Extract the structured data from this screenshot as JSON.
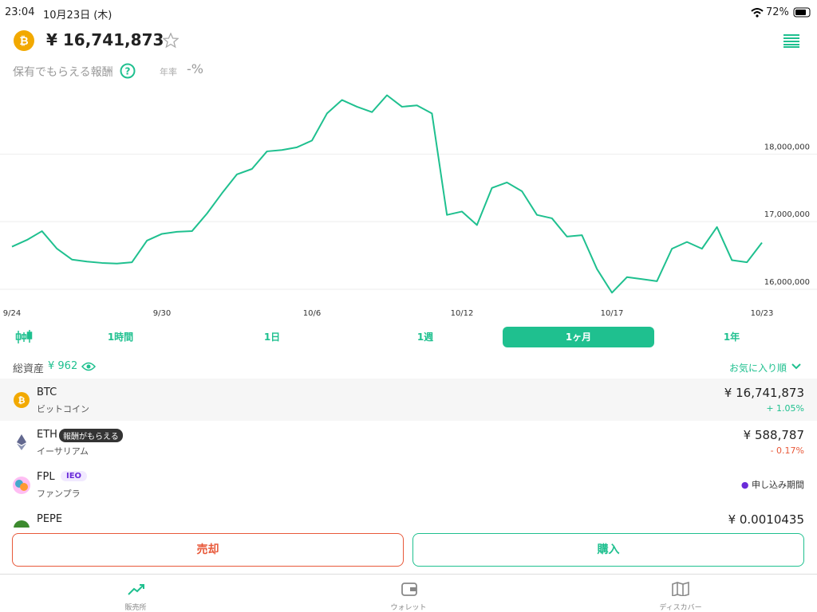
{
  "status_bar": {
    "time": "23:04",
    "date": "10月23日 (木)",
    "battery": "72%"
  },
  "header": {
    "price": "¥ 16,741,873",
    "reward": "保有でもらえる報酬",
    "rate_label": "年率",
    "rate": "-%"
  },
  "chart_data": {
    "type": "line",
    "color": "#1fc08f",
    "grid": true,
    "categories": [
      "9/24",
      null,
      null,
      null,
      null,
      null,
      null,
      null,
      null,
      null,
      "9/30",
      null,
      null,
      null,
      null,
      null,
      null,
      null,
      null,
      null,
      "10/6",
      null,
      null,
      null,
      null,
      null,
      null,
      null,
      null,
      null,
      "10/12",
      null,
      null,
      null,
      null,
      null,
      null,
      null,
      null,
      null,
      "10/17",
      null,
      null,
      null,
      null,
      null,
      null,
      null,
      null,
      null,
      "10/23"
    ],
    "values": [
      16630000,
      16730000,
      16860000,
      16600000,
      16440000,
      16410000,
      16390000,
      16380000,
      16400000,
      16720000,
      16820000,
      16850000,
      16860000,
      17120000,
      17420000,
      17700000,
      17780000,
      18040000,
      18060000,
      18100000,
      18200000,
      18600000,
      18800000,
      18700000,
      18620000,
      18870000,
      18700000,
      18720000,
      18600000,
      17100000,
      17150000,
      16950000,
      17500000,
      17580000,
      17450000,
      17100000,
      17050000,
      16780000,
      16800000,
      16300000,
      15950000,
      16180000,
      16150000,
      16120000,
      16600000,
      16700000,
      16600000,
      16920000,
      16430000,
      16400000,
      16690000
    ],
    "ylim": [
      15800000,
      19100000
    ],
    "yticks": [
      {
        "value": 16000000,
        "label": "16,000,000"
      },
      {
        "value": 17000000,
        "label": "17,000,000"
      },
      {
        "value": 18000000,
        "label": "18,000,000"
      }
    ]
  },
  "tabs": {
    "items": [
      "1時間",
      "1日",
      "1週",
      "1ヶ月",
      "1年"
    ],
    "selected": 3
  },
  "assets": {
    "label": "総資産",
    "value": "¥ 962",
    "sort": "お気に入り順"
  },
  "coins": [
    {
      "symbol": "BTC",
      "name": "ビットコイン",
      "price": "¥ 16,741,873",
      "change": "+ 1.05%"
    },
    {
      "symbol": "ETH",
      "badge": "報酬がもらえる",
      "name": "イーサリアム",
      "price": "¥ 588,787",
      "change": "- 0.17%"
    },
    {
      "symbol": "FPL",
      "badge": "IEO",
      "name": "ファンプラ",
      "status": "申し込み期間"
    },
    {
      "symbol": "PEPE",
      "price": "¥ 0.0010435"
    }
  ],
  "buttons": {
    "sell": "売却",
    "buy": "購入"
  },
  "nav": [
    "販売所",
    "ウォレット",
    "ディスカバー"
  ]
}
